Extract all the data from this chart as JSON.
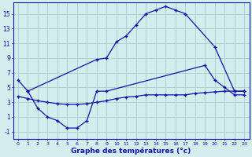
{
  "xlabel": "Graphe des températures (°c)",
  "background_color": "#d4eeed",
  "grid_color": "#aad4d0",
  "line_color": "#1010aa",
  "curve1_x": [
    0,
    1,
    8,
    9,
    10,
    11,
    12,
    13,
    14,
    15,
    16,
    17,
    20,
    22,
    23
  ],
  "curve1_y": [
    6,
    4.5,
    8.8,
    9.0,
    11.2,
    12.0,
    13.5,
    15.0,
    15.5,
    16.0,
    15.5,
    15.0,
    10.5,
    4.5,
    4.5
  ],
  "curve2_x": [
    0,
    1,
    2,
    3,
    4,
    5,
    6,
    7,
    8,
    9,
    10,
    11,
    12,
    13,
    14,
    15,
    16,
    17,
    18,
    19,
    20,
    21,
    22,
    23
  ],
  "curve2_y": [
    3.8,
    3.5,
    3.2,
    3.0,
    2.8,
    2.7,
    2.7,
    2.8,
    3.0,
    3.2,
    3.5,
    3.7,
    3.8,
    4.0,
    4.0,
    4.0,
    4.0,
    4.0,
    4.2,
    4.3,
    4.4,
    4.5,
    4.5,
    4.5
  ],
  "curve3_x": [
    1,
    2,
    3,
    4,
    5,
    6,
    7,
    8,
    9,
    19,
    20,
    21,
    22,
    23
  ],
  "curve3_y": [
    4.5,
    2.2,
    1.0,
    0.5,
    -0.5,
    -0.5,
    0.5,
    4.5,
    4.5,
    8.0,
    6.0,
    5.0,
    4.0,
    4.0
  ],
  "yticks": [
    -1,
    1,
    3,
    5,
    7,
    9,
    11,
    13,
    15
  ],
  "ylim": [
    -2.0,
    16.5
  ],
  "xlim": [
    -0.5,
    23.5
  ]
}
